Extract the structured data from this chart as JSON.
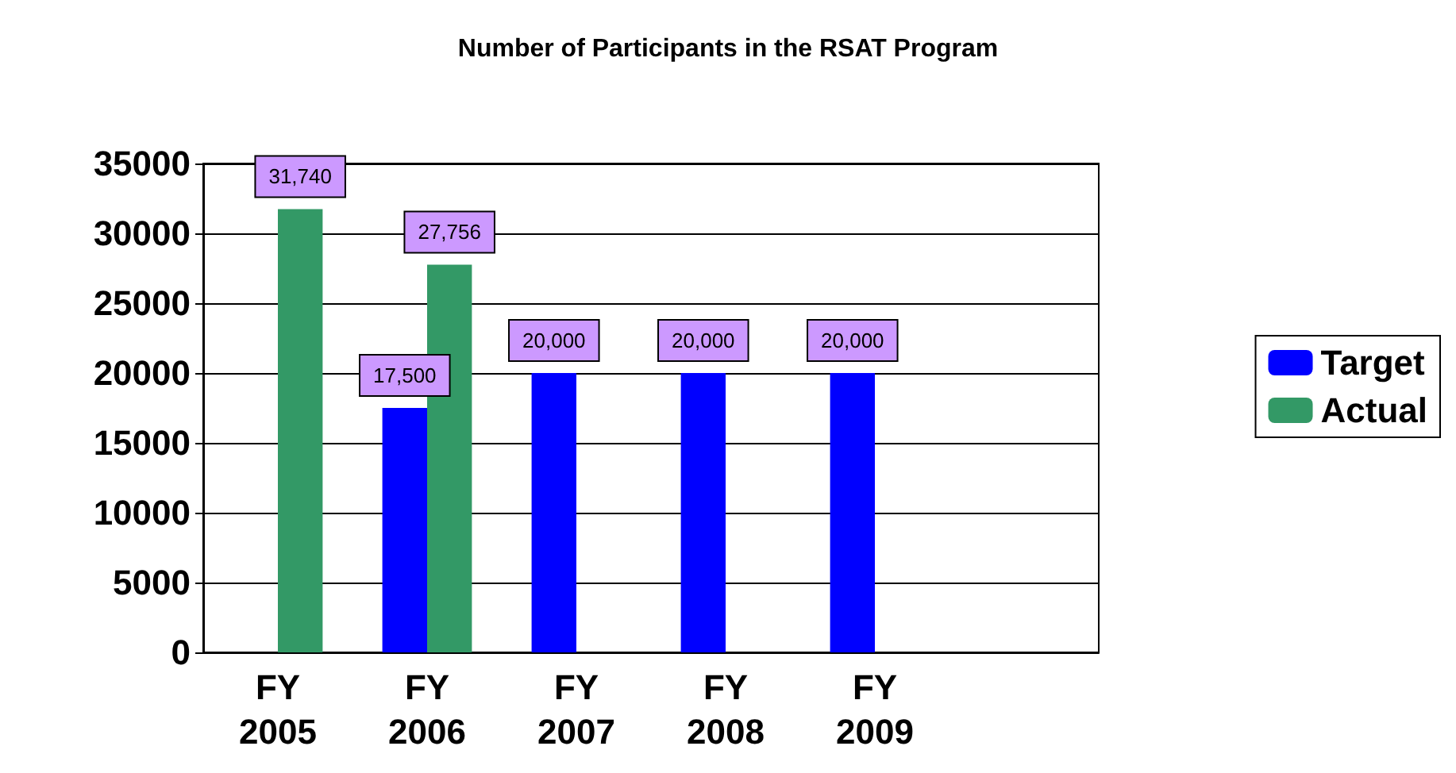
{
  "chart_data": {
    "type": "bar",
    "title": "Number of Participants in the RSAT Program",
    "categories": [
      "FY 2005",
      "FY 2006",
      "FY 2007",
      "FY 2008",
      "FY 2009",
      null
    ],
    "series": [
      {
        "name": "Target",
        "color": "#0000ff",
        "values": [
          0,
          17500,
          20000,
          20000,
          20000,
          null
        ],
        "value_labels": [
          null,
          "17,500",
          "20,000",
          "20,000",
          "20,000",
          null
        ]
      },
      {
        "name": "Actual",
        "color": "#339966",
        "values": [
          31740,
          27756,
          null,
          null,
          null,
          null
        ],
        "value_labels": [
          "31,740",
          "27,756",
          null,
          null,
          null,
          null
        ]
      }
    ],
    "ylim": [
      0,
      35000
    ],
    "yticks": [
      0,
      5000,
      10000,
      15000,
      20000,
      25000,
      30000,
      35000
    ],
    "grid": "y",
    "legend": "right"
  }
}
